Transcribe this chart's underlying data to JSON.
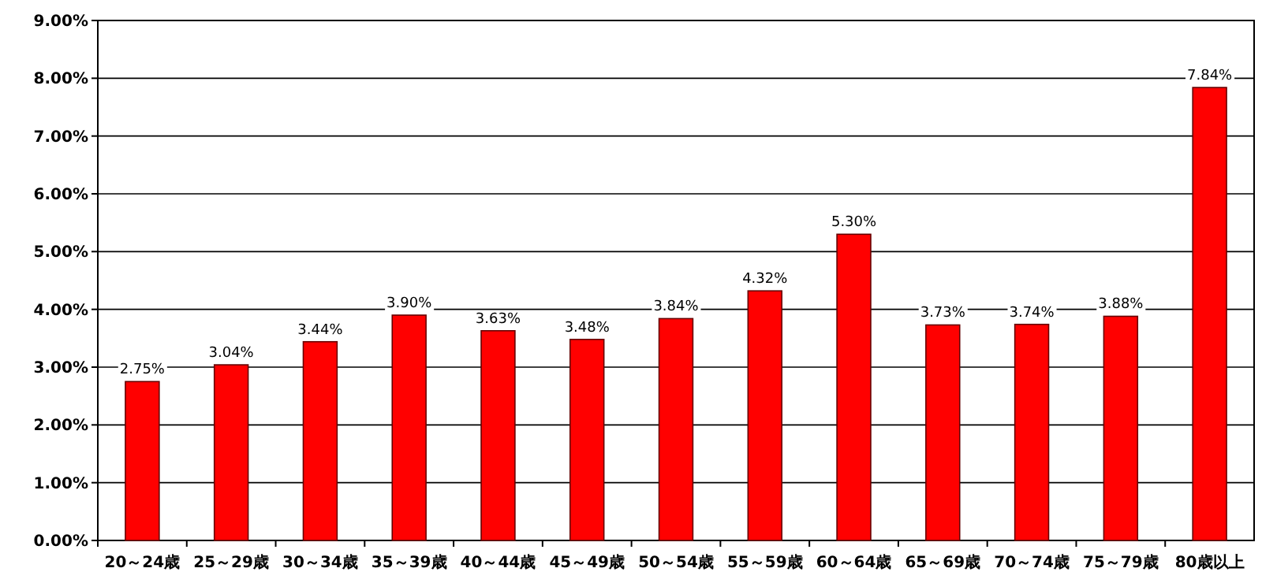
{
  "chart_data": {
    "type": "bar",
    "categories": [
      "20～24歳",
      "25～29歳",
      "30～34歳",
      "35～39歳",
      "40～44歳",
      "45～49歳",
      "50～54歳",
      "55～59歳",
      "60～64歳",
      "65～69歳",
      "70～74歳",
      "75～79歳",
      "80歳以上"
    ],
    "values": [
      2.75,
      3.04,
      3.44,
      3.9,
      3.63,
      3.48,
      3.84,
      4.32,
      5.3,
      3.73,
      3.74,
      3.88,
      7.84
    ],
    "value_labels": [
      "2.75%",
      "3.04%",
      "3.44%",
      "3.90%",
      "3.63%",
      "3.48%",
      "3.84%",
      "4.32%",
      "5.30%",
      "3.73%",
      "3.74%",
      "3.88%",
      "7.84%"
    ],
    "color": "#ff0000",
    "ylim": [
      0,
      9
    ],
    "yticks": [
      {
        "value": 0,
        "label": "0.00%"
      },
      {
        "value": 1,
        "label": "1.00%"
      },
      {
        "value": 2,
        "label": "2.00%"
      },
      {
        "value": 3,
        "label": "3.00%"
      },
      {
        "value": 4,
        "label": "4.00%"
      },
      {
        "value": 5,
        "label": "5.00%"
      },
      {
        "value": 6,
        "label": "6.00%"
      },
      {
        "value": 7,
        "label": "7.00%"
      },
      {
        "value": 8,
        "label": "8.00%"
      },
      {
        "value": 9,
        "label": "9.00%"
      }
    ],
    "grid": "y"
  }
}
